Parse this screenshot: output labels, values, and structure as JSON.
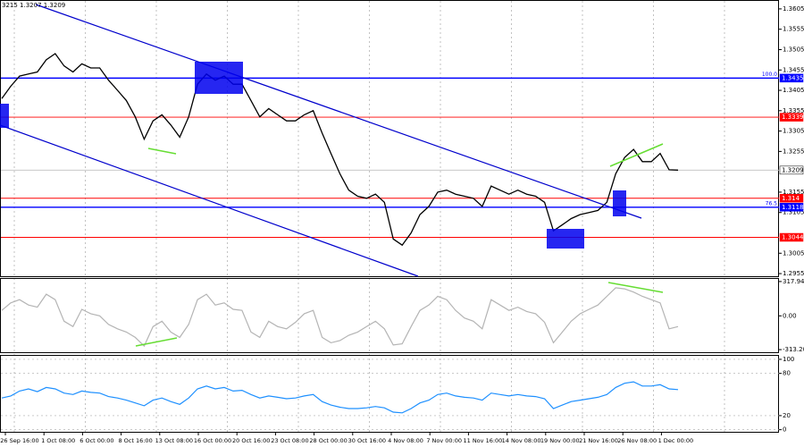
{
  "chart_data": [
    {
      "type": "line",
      "title": "3215 1.3207 1.3209",
      "color": "#000000",
      "values": [
        1.3385,
        1.3415,
        1.344,
        1.3445,
        1.345,
        1.348,
        1.3495,
        1.3465,
        1.345,
        1.347,
        1.346,
        1.346,
        1.343,
        1.3405,
        1.338,
        1.334,
        1.3285,
        1.333,
        1.3345,
        1.332,
        1.329,
        1.334,
        1.342,
        1.3445,
        1.343,
        1.344,
        1.342,
        1.342,
        1.338,
        1.334,
        1.336,
        1.3345,
        1.333,
        1.333,
        1.3345,
        1.3355,
        1.33,
        1.325,
        1.32,
        1.316,
        1.3145,
        1.314,
        1.315,
        1.313,
        1.304,
        1.3025,
        1.3055,
        1.31,
        1.312,
        1.3155,
        1.316,
        1.315,
        1.3145,
        1.314,
        1.312,
        1.317,
        1.316,
        1.315,
        1.316,
        1.315,
        1.3145,
        1.313,
        1.306,
        1.3075,
        1.309,
        1.31,
        1.3105,
        1.311,
        1.313,
        1.32,
        1.324,
        1.326,
        1.323,
        1.323,
        1.325,
        1.321,
        1.3209
      ],
      "ylim": [
        1.29485,
        1.36246
      ],
      "yticks": [
        1.3605,
        1.3555,
        1.3505,
        1.3455,
        1.3405,
        1.3355,
        1.3305,
        1.3255,
        1.3155,
        1.3105,
        1.3005,
        1.2955
      ],
      "levels": [
        {
          "value": 1.3435,
          "color": "#0000ff",
          "annotation": "100.0"
        },
        {
          "value": 1.3339,
          "color": "#ff0000"
        },
        {
          "value": 1.3209,
          "color": "#c0c0c0"
        },
        {
          "value": 1.314,
          "color": "#ff0000"
        },
        {
          "value": 1.3118,
          "color": "#0000ff",
          "annotation": "76.5"
        },
        {
          "value": 1.3044,
          "color": "#ff0000"
        }
      ]
    },
    {
      "type": "line",
      "color": "#b4b4b4",
      "values": [
        50,
        120,
        150,
        100,
        80,
        200,
        150,
        -50,
        -100,
        60,
        20,
        0,
        -80,
        -120,
        -150,
        -200,
        -280,
        -100,
        -50,
        -150,
        -200,
        -80,
        150,
        200,
        100,
        120,
        60,
        50,
        -150,
        -200,
        -50,
        -100,
        -120,
        -60,
        20,
        50,
        -200,
        -250,
        -230,
        -180,
        -150,
        -100,
        -50,
        -120,
        -270,
        -260,
        -100,
        50,
        100,
        180,
        150,
        50,
        -20,
        -50,
        -120,
        150,
        100,
        50,
        80,
        40,
        20,
        -60,
        -250,
        -150,
        -50,
        20,
        60,
        100,
        180,
        260,
        250,
        220,
        180,
        150,
        120,
        -120,
        -100
      ],
      "ylim": [
        -337.5,
        342
      ],
      "yticks": [
        317.9471,
        {
          "value": 0,
          "label": "0.00"
        },
        -313.204
      ]
    },
    {
      "type": "line",
      "color": "#1e90ff",
      "values": [
        45,
        48,
        55,
        58,
        54,
        60,
        58,
        52,
        50,
        55,
        53,
        52,
        47,
        45,
        42,
        38,
        34,
        42,
        45,
        40,
        36,
        45,
        58,
        62,
        58,
        60,
        55,
        56,
        50,
        45,
        48,
        46,
        44,
        45,
        48,
        50,
        40,
        35,
        32,
        30,
        30,
        31,
        33,
        31,
        25,
        24,
        30,
        38,
        42,
        50,
        52,
        48,
        46,
        45,
        42,
        52,
        50,
        48,
        50,
        48,
        47,
        44,
        30,
        35,
        40,
        42,
        44,
        46,
        50,
        60,
        66,
        68,
        62,
        62,
        64,
        58,
        57
      ],
      "ylim": [
        -3,
        105
      ],
      "yticks": [
        100,
        80,
        20,
        0
      ],
      "x_labels": [
        "26 Sep 16:00",
        "1 Oct 08:00",
        "6 Oct 00:00",
        "8 Oct 16:00",
        "13 Oct 08:00",
        "16 Oct 00:00",
        "20 Oct 16:00",
        "23 Oct 08:00",
        "28 Oct 00:00",
        "30 Oct 16:00",
        "4 Nov 08:00",
        "7 Nov 00:00",
        "11 Nov 16:00",
        "14 Nov 08:00",
        "19 Nov 00:00",
        "21 Nov 16:00",
        "26 Nov 08:00",
        "1 Dec 00:00"
      ]
    }
  ]
}
